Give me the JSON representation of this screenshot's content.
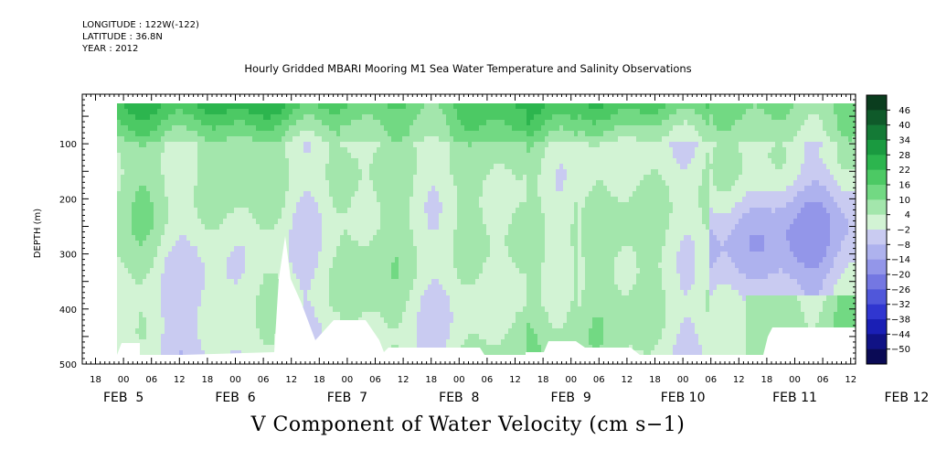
{
  "header": {
    "longitude": "LONGITUDE : 122W(-122)",
    "latitude": "LATITUDE : 36.8N",
    "year": "YEAR : 2012"
  },
  "chart_data": {
    "type": "heatmap",
    "title": "Hourly Gridded MBARI Mooring M1 Sea Water Temperature and Salinity Observations",
    "xlabel": "V Component of Water Velocity (cm s−1)",
    "ylabel": "DEPTH (m)",
    "ylim": [
      500,
      10
    ],
    "y_ticks": [
      100,
      200,
      300,
      400,
      500
    ],
    "x_hour_labels": [
      "18",
      "00",
      "06",
      "12",
      "18",
      "00",
      "06",
      "12",
      "18",
      "00",
      "06",
      "12",
      "18",
      "00",
      "06",
      "12",
      "18",
      "00",
      "06",
      "12",
      "18",
      "00",
      "06",
      "12",
      "18",
      "00",
      "06",
      "12"
    ],
    "x_day_labels": [
      "FEB  5",
      "FEB  6",
      "FEB  7",
      "FEB  8",
      "FEB  9",
      "FEB 10",
      "FEB 11",
      "FEB 12"
    ],
    "colorbar": {
      "levels": [
        "46",
        "40",
        "34",
        "28",
        "22",
        "16",
        "10",
        "4",
        "−2",
        "−8",
        "−14",
        "−20",
        "−26",
        "−32",
        "−38",
        "−44",
        "−50"
      ],
      "colors": [
        "#0a3d1e",
        "#0f5a2a",
        "#147a36",
        "#1a9a40",
        "#2cb54e",
        "#4cc964",
        "#72d983",
        "#a3e6ac",
        "#d2f3d4",
        "#c9cbf1",
        "#aeb2ee",
        "#9396e9",
        "#7477e2",
        "#5057da",
        "#3036d0",
        "#1a1fb5",
        "#101285",
        "#0a0a55"
      ]
    }
  }
}
